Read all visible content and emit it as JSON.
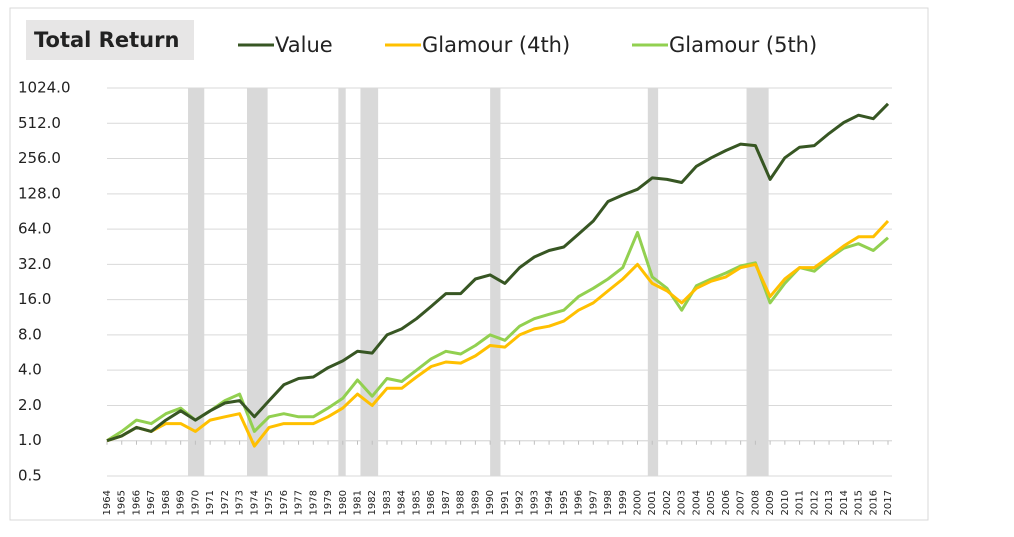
{
  "chart_data": {
    "type": "line",
    "title": "Total Return",
    "log_scale": true,
    "grid": true,
    "x": [
      1964,
      1965,
      1966,
      1967,
      1968,
      1969,
      1970,
      1971,
      1972,
      1973,
      1974,
      1975,
      1976,
      1977,
      1978,
      1979,
      1980,
      1981,
      1982,
      1983,
      1984,
      1985,
      1986,
      1987,
      1988,
      1989,
      1990,
      1991,
      1992,
      1993,
      1994,
      1995,
      1996,
      1997,
      1998,
      1999,
      2000,
      2001,
      2002,
      2003,
      2004,
      2005,
      2006,
      2007,
      2008,
      2009,
      2010,
      2011,
      2012,
      2013,
      2014,
      2015,
      2016,
      2017
    ],
    "xlim": [
      1964,
      2017
    ],
    "ylim": [
      0.5,
      1024
    ],
    "yticks": [
      0.5,
      {
        "value": 1,
        "label": "1.0"
      },
      {
        "value": 2,
        "label": "2.0"
      },
      {
        "value": 4,
        "label": "4.0"
      },
      {
        "value": 8,
        "label": "8.0"
      },
      {
        "value": 16,
        "label": "16.0"
      },
      {
        "value": 32,
        "label": "32.0"
      },
      {
        "value": 64,
        "label": "64.0"
      },
      {
        "value": 128,
        "label": "128.0"
      },
      {
        "value": 256,
        "label": "256.0"
      },
      {
        "value": 512,
        "label": "512.0"
      },
      {
        "value": 1024,
        "label": "1024.0"
      }
    ],
    "shaded_periods": [
      {
        "start": 1969.5,
        "end": 1970.6,
        "color": "#d9d9d9"
      },
      {
        "start": 1973.5,
        "end": 1974.9,
        "color": "#d9d9d9"
      },
      {
        "start": 1979.7,
        "end": 1980.2,
        "color": "#d9d9d9"
      },
      {
        "start": 1981.2,
        "end": 1982.4,
        "color": "#d9d9d9"
      },
      {
        "start": 1990.0,
        "end": 1990.7,
        "color": "#d9d9d9"
      },
      {
        "start": 2000.7,
        "end": 2001.4,
        "color": "#d9d9d9"
      },
      {
        "start": 2007.4,
        "end": 2008.9,
        "color": "#d9d9d9"
      }
    ],
    "series": [
      {
        "name": "Value",
        "color": "#375623",
        "values": [
          1.0,
          1.1,
          1.3,
          1.2,
          1.5,
          1.8,
          1.5,
          1.8,
          2.1,
          2.2,
          1.6,
          2.2,
          3.0,
          3.4,
          3.5,
          4.2,
          4.8,
          5.8,
          5.6,
          8.0,
          9.0,
          11,
          14,
          18,
          18,
          24,
          26,
          22,
          30,
          37,
          42,
          45,
          58,
          75,
          110,
          125,
          140,
          175,
          170,
          160,
          220,
          260,
          300,
          340,
          330,
          170,
          260,
          320,
          330,
          420,
          520,
          600,
          560,
          750
        ]
      },
      {
        "name": "Glamour (4th)",
        "color": "#ffc000",
        "values": [
          1.0,
          1.1,
          1.3,
          1.2,
          1.4,
          1.4,
          1.2,
          1.5,
          1.6,
          1.7,
          0.9,
          1.3,
          1.4,
          1.4,
          1.4,
          1.6,
          1.9,
          2.5,
          2.0,
          2.8,
          2.8,
          3.5,
          4.3,
          4.7,
          4.6,
          5.3,
          6.5,
          6.3,
          8.0,
          9.0,
          9.5,
          10.5,
          13,
          15,
          19,
          24,
          32,
          22,
          19,
          15,
          20,
          23,
          25,
          30,
          32,
          17,
          24,
          30,
          30,
          37,
          46,
          55,
          55,
          75
        ]
      },
      {
        "name": "Glamour (5th)",
        "color": "#92d050",
        "values": [
          1.0,
          1.2,
          1.5,
          1.4,
          1.7,
          1.9,
          1.5,
          1.8,
          2.2,
          2.5,
          1.2,
          1.6,
          1.7,
          1.6,
          1.6,
          1.9,
          2.3,
          3.3,
          2.4,
          3.4,
          3.2,
          4.0,
          5.0,
          5.8,
          5.5,
          6.5,
          8.0,
          7.2,
          9.5,
          11,
          12,
          13,
          17,
          20,
          24,
          30,
          60,
          25,
          20,
          13,
          21,
          24,
          27,
          31,
          33,
          15,
          22,
          30,
          28,
          36,
          44,
          48,
          42,
          54
        ]
      }
    ]
  }
}
